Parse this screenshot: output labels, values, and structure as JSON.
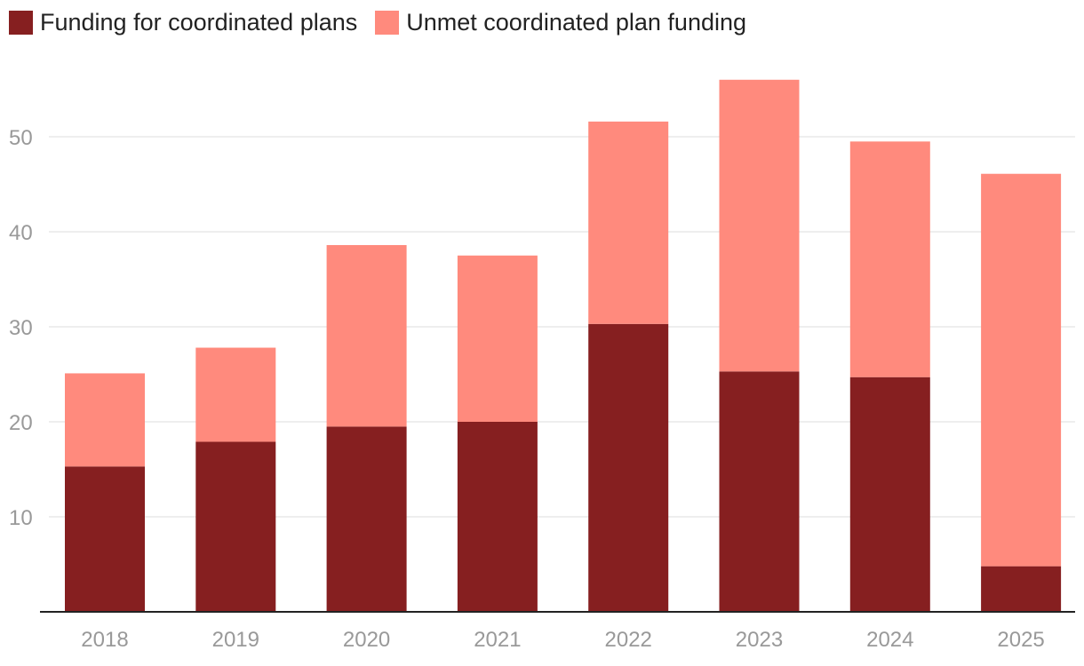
{
  "chart_data": {
    "type": "bar",
    "stacked": true,
    "categories": [
      "2018",
      "2019",
      "2020",
      "2021",
      "2022",
      "2023",
      "2024",
      "2025"
    ],
    "series": [
      {
        "name": "Funding for coordinated plans",
        "color": "#861f20",
        "values": [
          15.3,
          17.9,
          19.5,
          20.0,
          30.3,
          25.3,
          24.7,
          4.8
        ]
      },
      {
        "name": "Unmet coordinated plan funding",
        "color": "#ff8a7d",
        "values": [
          9.8,
          9.9,
          19.1,
          17.5,
          21.3,
          30.7,
          24.8,
          41.3
        ]
      }
    ],
    "yticks": [
      "10",
      "20",
      "30",
      "40",
      "50"
    ],
    "ylim": [
      0,
      60
    ],
    "grid": true,
    "legend_position": "top-left",
    "title": "",
    "xlabel": "",
    "ylabel": ""
  }
}
